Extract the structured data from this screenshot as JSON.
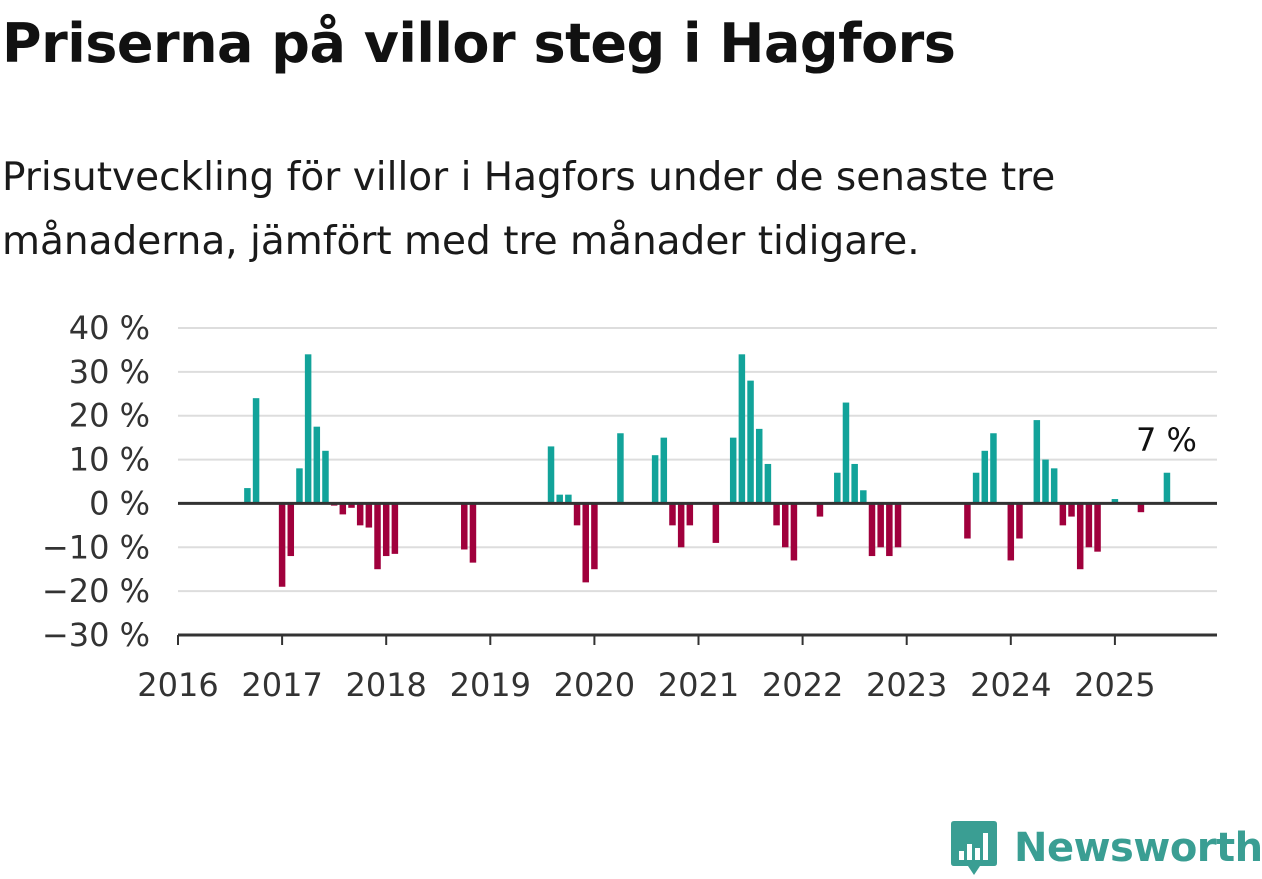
{
  "title": "Priserna på villor steg i Hagfors",
  "subtitle": "Prisutveckling för villor i Hagfors under de senaste tre månaderna, jämfört med tre månader tidigare.",
  "brand": {
    "name": "Newsworthy",
    "color": "#3a9e93",
    "icon": "newsworthy-logo-icon"
  },
  "colors": {
    "positive": "#12a39a",
    "negative": "#a0003c",
    "grid": "#dddddd",
    "axis": "#333333"
  },
  "chart_data": {
    "type": "bar",
    "ylim": [
      -30,
      40
    ],
    "yticks": [
      -30,
      -20,
      -10,
      0,
      10,
      20,
      30,
      40
    ],
    "ytick_labels": [
      "−30 %",
      "−20 %",
      "−10 %",
      "0 %",
      "10 %",
      "20 %",
      "30 %",
      "40 %"
    ],
    "xticks": [
      "2016",
      "2017",
      "2018",
      "2019",
      "2020",
      "2021",
      "2022",
      "2023",
      "2024",
      "2025"
    ],
    "grid": true,
    "x": [
      "2016-09",
      "2016-10",
      "2016-11",
      "2016-12",
      "2017-01",
      "2017-02",
      "2017-03",
      "2017-04",
      "2017-05",
      "2017-06",
      "2017-07",
      "2017-08",
      "2017-09",
      "2017-10",
      "2017-11",
      "2017-12",
      "2018-01",
      "2018-02",
      "2018-10",
      "2018-11",
      "2019-08",
      "2019-09",
      "2019-10",
      "2019-11",
      "2019-12",
      "2020-01",
      "2020-04",
      "2020-08",
      "2020-09",
      "2020-10",
      "2020-11",
      "2020-12",
      "2021-03",
      "2021-05",
      "2021-06",
      "2021-07",
      "2021-08",
      "2021-09",
      "2021-10",
      "2021-11",
      "2021-12",
      "2022-03",
      "2022-05",
      "2022-06",
      "2022-07",
      "2022-08",
      "2022-09",
      "2022-10",
      "2022-11",
      "2022-12",
      "2023-08",
      "2023-09",
      "2023-10",
      "2023-11",
      "2024-01",
      "2024-02",
      "2024-04",
      "2024-05",
      "2024-06",
      "2024-07",
      "2024-08",
      "2024-09",
      "2024-10",
      "2024-11",
      "2025-01",
      "2025-04",
      "2025-07"
    ],
    "values": [
      3.5,
      24,
      0,
      0,
      -19,
      -12,
      8,
      34,
      17.5,
      12,
      -0.5,
      -2.5,
      -1,
      -5,
      -5.5,
      -15,
      -12,
      -11.5,
      -10.5,
      -13.5,
      13,
      2,
      2,
      -5,
      -18,
      -15,
      16,
      11,
      15,
      -5,
      -10,
      -5,
      -9,
      15,
      34,
      28,
      17,
      9,
      -5,
      -10,
      -13,
      -3,
      7,
      23,
      9,
      3,
      -12,
      -10,
      -12,
      -10,
      -8,
      7,
      12,
      16,
      -13,
      -8,
      19,
      10,
      8,
      -5,
      -3,
      -15,
      -10,
      -11,
      1,
      -2,
      7
    ],
    "annotation": {
      "x": "2025-07",
      "text": "7 %"
    }
  }
}
